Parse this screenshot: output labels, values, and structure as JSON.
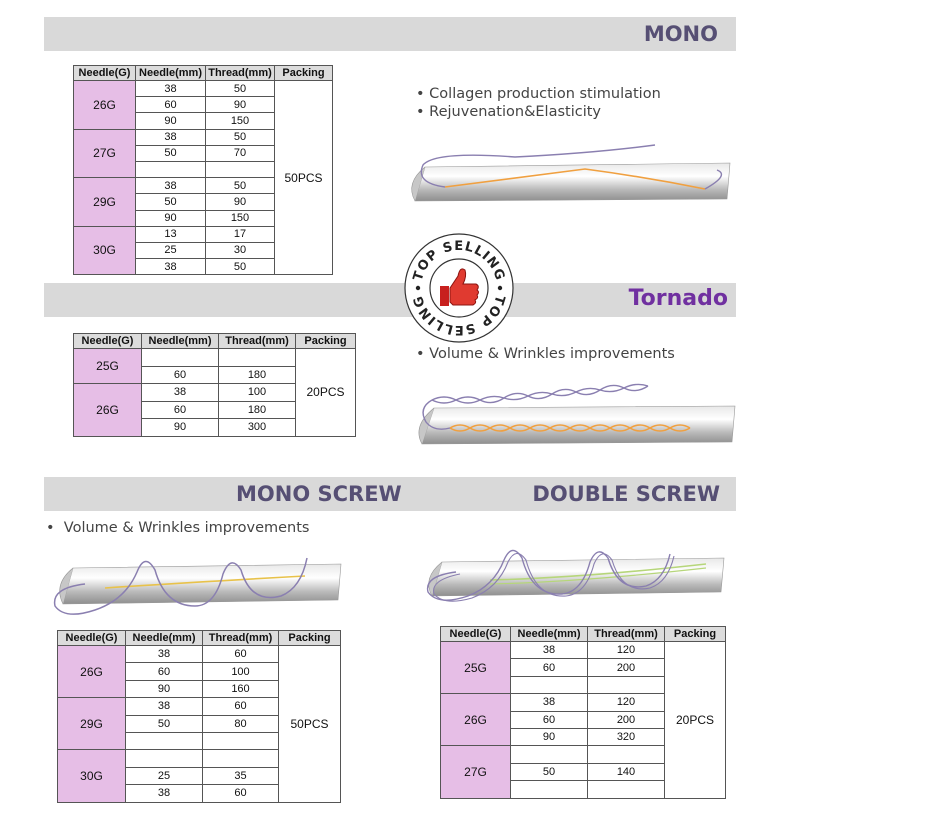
{
  "sections": {
    "mono": {
      "title": "MONO",
      "bullets": [
        "Collagen production stimulation",
        "Rejuvenation&Elasticity"
      ],
      "headers": [
        "Needle(G)",
        "Needle(mm)",
        "Thread(mm)",
        "Packing"
      ],
      "packing": "50PCS",
      "groups": [
        {
          "gauge": "26G",
          "rows": [
            [
              "38",
              "50"
            ],
            [
              "60",
              "90"
            ],
            [
              "90",
              "150"
            ]
          ]
        },
        {
          "gauge": "27G",
          "rows": [
            [
              "38",
              "50"
            ],
            [
              "50",
              "70"
            ],
            [
              "",
              ""
            ]
          ]
        },
        {
          "gauge": "29G",
          "rows": [
            [
              "38",
              "50"
            ],
            [
              "50",
              "90"
            ],
            [
              "90",
              "150"
            ]
          ]
        },
        {
          "gauge": "30G",
          "rows": [
            [
              "13",
              "17"
            ],
            [
              "25",
              "30"
            ],
            [
              "38",
              "50"
            ]
          ]
        }
      ]
    },
    "tornado": {
      "title": "Tornado",
      "bullets": [
        "Volume & Wrinkles improvements"
      ],
      "headers": [
        "Needle(G)",
        "Needle(mm)",
        "Thread(mm)",
        "Packing"
      ],
      "packing": "20PCS",
      "groups": [
        {
          "gauge": "25G",
          "rows": [
            [
              "",
              ""
            ],
            [
              "60",
              "180"
            ]
          ]
        },
        {
          "gauge": "26G",
          "rows": [
            [
              "38",
              "100"
            ],
            [
              "60",
              "180"
            ],
            [
              "90",
              "300"
            ]
          ]
        }
      ]
    },
    "mono_screw": {
      "title": "MONO SCREW",
      "bullets": [
        "Volume & Wrinkles improvements"
      ],
      "headers": [
        "Needle(G)",
        "Needle(mm)",
        "Thread(mm)",
        "Packing"
      ],
      "packing": "50PCS",
      "groups": [
        {
          "gauge": "26G",
          "rows": [
            [
              "38",
              "60"
            ],
            [
              "60",
              "100"
            ],
            [
              "90",
              "160"
            ]
          ]
        },
        {
          "gauge": "29G",
          "rows": [
            [
              "38",
              "60"
            ],
            [
              "50",
              "80"
            ],
            [
              "",
              ""
            ]
          ]
        },
        {
          "gauge": "30G",
          "rows": [
            [
              "",
              ""
            ],
            [
              "25",
              "35"
            ],
            [
              "38",
              "60"
            ]
          ]
        }
      ]
    },
    "double_screw": {
      "title": "DOUBLE SCREW",
      "headers": [
        "Needle(G)",
        "Needle(mm)",
        "Thread(mm)",
        "Packing"
      ],
      "packing": "20PCS",
      "groups": [
        {
          "gauge": "25G",
          "rows": [
            [
              "38",
              "120"
            ],
            [
              "60",
              "200"
            ],
            [
              "",
              ""
            ]
          ]
        },
        {
          "gauge": "26G",
          "rows": [
            [
              "38",
              "120"
            ],
            [
              "60",
              "200"
            ],
            [
              "90",
              "320"
            ]
          ]
        },
        {
          "gauge": "27G",
          "rows": [
            [
              "",
              ""
            ],
            [
              "50",
              "140"
            ],
            [
              "",
              ""
            ]
          ]
        }
      ]
    }
  },
  "seal": {
    "text": "TOP SELLING",
    "icon": "thumbs-up-icon"
  },
  "colors": {
    "band": "#d9d9d9",
    "title": "#564f74",
    "tornado_title": "#7030a0",
    "gauge_cell": "#e6bee6",
    "thread_purple": "#8a7fb0",
    "thread_orange": "#f0a040"
  }
}
